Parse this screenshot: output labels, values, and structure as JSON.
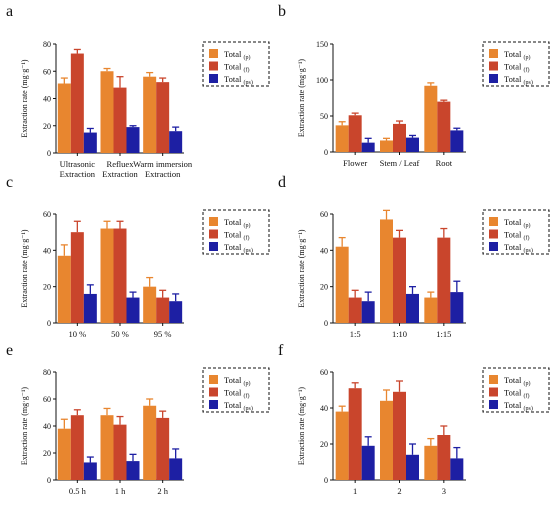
{
  "colors": {
    "p": "#e8862f",
    "f": "#c9452c",
    "ps": "#1d1fa3",
    "axis": "#111111",
    "error": "#111111"
  },
  "legend": {
    "entries": [
      {
        "key": "p",
        "base": "Total",
        "sub": "(p)"
      },
      {
        "key": "f",
        "base": "Total",
        "sub": "(f)"
      },
      {
        "key": "ps",
        "base": "Total",
        "sub": "(ps)"
      }
    ],
    "placement": "top-right",
    "border": "dashed"
  },
  "chart_data": [
    {
      "id": "a",
      "letter": "a",
      "type": "bar",
      "ylabel": "Extraction rate (mg·g⁻¹)",
      "ylim": [
        0,
        80
      ],
      "yticks": [
        0,
        20,
        40,
        60,
        80
      ],
      "categories": [
        [
          "Ultrasonic",
          "Extraction"
        ],
        [
          "Refluex",
          "Extraction"
        ],
        [
          "Warm immersion",
          "Extraction"
        ]
      ],
      "series": [
        {
          "name": "Total (p)",
          "key": "p",
          "values": [
            51,
            60,
            56
          ],
          "errors": [
            4,
            2,
            3
          ]
        },
        {
          "name": "Total (f)",
          "key": "f",
          "values": [
            73,
            48,
            52
          ],
          "errors": [
            3,
            8,
            3
          ]
        },
        {
          "name": "Total (ps)",
          "key": "ps",
          "values": [
            15,
            19,
            16
          ],
          "errors": [
            3,
            1,
            3
          ]
        }
      ]
    },
    {
      "id": "b",
      "letter": "b",
      "type": "bar",
      "ylabel": "Extraction rate (mg·g⁻¹)",
      "ylim": [
        0,
        150
      ],
      "yticks": [
        0,
        50,
        100,
        150
      ],
      "categories": [
        [
          "Flower"
        ],
        [
          "Stem / Leaf"
        ],
        [
          "Root"
        ]
      ],
      "series": [
        {
          "name": "Total (p)",
          "key": "p",
          "values": [
            37,
            16,
            92
          ],
          "errors": [
            5,
            3,
            4
          ]
        },
        {
          "name": "Total (f)",
          "key": "f",
          "values": [
            51,
            39,
            70
          ],
          "errors": [
            3,
            4,
            2
          ]
        },
        {
          "name": "Total (ps)",
          "key": "ps",
          "values": [
            13,
            20,
            30
          ],
          "errors": [
            6,
            3,
            3
          ]
        }
      ]
    },
    {
      "id": "c",
      "letter": "c",
      "type": "bar",
      "ylabel": "Extraction rate (mg·g⁻¹)",
      "ylim": [
        0,
        60
      ],
      "yticks": [
        0,
        20,
        40,
        60
      ],
      "categories": [
        [
          "10 %"
        ],
        [
          "50 %"
        ],
        [
          "95 %"
        ]
      ],
      "series": [
        {
          "name": "Total (p)",
          "key": "p",
          "values": [
            37,
            52,
            20
          ],
          "errors": [
            6,
            4,
            5
          ]
        },
        {
          "name": "Total (f)",
          "key": "f",
          "values": [
            50,
            52,
            14
          ],
          "errors": [
            6,
            4,
            4
          ]
        },
        {
          "name": "Total (ps)",
          "key": "ps",
          "values": [
            16,
            14,
            12
          ],
          "errors": [
            5,
            3,
            4
          ]
        }
      ]
    },
    {
      "id": "d",
      "letter": "d",
      "type": "bar",
      "ylabel": "Extraction rate (mg·g⁻¹)",
      "ylim": [
        0,
        60
      ],
      "yticks": [
        0,
        20,
        40,
        60
      ],
      "categories": [
        [
          "1:5"
        ],
        [
          "1:10"
        ],
        [
          "1:15"
        ]
      ],
      "series": [
        {
          "name": "Total (p)",
          "key": "p",
          "values": [
            42,
            57,
            14
          ],
          "errors": [
            5,
            5,
            3
          ]
        },
        {
          "name": "Total (f)",
          "key": "f",
          "values": [
            14,
            47,
            47
          ],
          "errors": [
            4,
            4,
            5
          ]
        },
        {
          "name": "Total (ps)",
          "key": "ps",
          "values": [
            12,
            16,
            17
          ],
          "errors": [
            5,
            4,
            6
          ]
        }
      ]
    },
    {
      "id": "e",
      "letter": "e",
      "type": "bar",
      "ylabel": "Extraction rate (mg·g⁻¹)",
      "ylim": [
        0,
        80
      ],
      "yticks": [
        0,
        20,
        40,
        60,
        80
      ],
      "categories": [
        [
          "0.5 h"
        ],
        [
          "1 h"
        ],
        [
          "2 h"
        ]
      ],
      "series": [
        {
          "name": "Total (p)",
          "key": "p",
          "values": [
            38,
            48,
            55
          ],
          "errors": [
            7,
            5,
            5
          ]
        },
        {
          "name": "Total (f)",
          "key": "f",
          "values": [
            48,
            41,
            46
          ],
          "errors": [
            4,
            6,
            5
          ]
        },
        {
          "name": "Total (ps)",
          "key": "ps",
          "values": [
            13,
            14,
            16
          ],
          "errors": [
            4,
            5,
            7
          ]
        }
      ]
    },
    {
      "id": "f",
      "letter": "f",
      "type": "bar",
      "ylabel": "Extraction rate (mg·g⁻¹)",
      "ylim": [
        0,
        60
      ],
      "yticks": [
        0,
        20,
        40,
        60
      ],
      "categories": [
        [
          "1"
        ],
        [
          "2"
        ],
        [
          "3"
        ]
      ],
      "series": [
        {
          "name": "Total (p)",
          "key": "p",
          "values": [
            38,
            44,
            19
          ],
          "errors": [
            3,
            6,
            4
          ]
        },
        {
          "name": "Total (f)",
          "key": "f",
          "values": [
            51,
            49,
            25
          ],
          "errors": [
            3,
            6,
            5
          ]
        },
        {
          "name": "Total (ps)",
          "key": "ps",
          "values": [
            19,
            14,
            12
          ],
          "errors": [
            5,
            6,
            6
          ]
        }
      ]
    }
  ]
}
